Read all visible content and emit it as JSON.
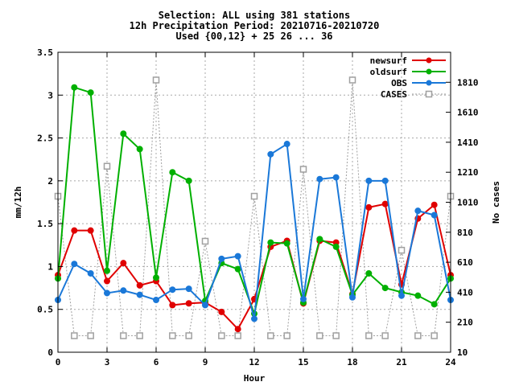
{
  "chart_data": {
    "type": "line",
    "title_lines": [
      "Selection: ALL using   381 stations",
      "12h Precipitation   Period: 20210716-20210720",
      "Used {00,12} + 25 26 ... 36"
    ],
    "xlabel": "Hour",
    "ylabel": "mm/12h",
    "y2label": "No cases",
    "xlim": [
      0,
      24
    ],
    "ylim": [
      0,
      3.5
    ],
    "y2lim": [
      10,
      2010
    ],
    "x_ticks": [
      0,
      3,
      6,
      9,
      12,
      15,
      18,
      21,
      24
    ],
    "y_ticks": [
      "0",
      "0.5",
      "1",
      "1.5",
      "2",
      "2.5",
      "3",
      "3.5"
    ],
    "y2_ticks": [
      10,
      210,
      410,
      610,
      810,
      1010,
      1210,
      1410,
      1610,
      1810
    ],
    "grid": true,
    "legend_position": "top-right",
    "series": [
      {
        "name": "newsurf",
        "color": "#e00000",
        "marker": "filled-circle",
        "axis": "left",
        "x": [
          0,
          1,
          2,
          3,
          4,
          5,
          6,
          7,
          8,
          9,
          10,
          11,
          12,
          13,
          14,
          15,
          16,
          17,
          18,
          19,
          20,
          21,
          22,
          23,
          24
        ],
        "y": [
          0.9,
          1.42,
          1.42,
          0.83,
          1.04,
          0.78,
          0.83,
          0.55,
          0.57,
          0.58,
          0.47,
          0.27,
          0.62,
          1.23,
          1.3,
          0.57,
          1.3,
          1.28,
          0.68,
          1.69,
          1.73,
          0.79,
          1.56,
          1.72,
          0.9
        ]
      },
      {
        "name": "oldsurf",
        "color": "#00b000",
        "marker": "filled-circle",
        "axis": "left",
        "x": [
          0,
          1,
          2,
          3,
          4,
          5,
          6,
          7,
          8,
          9,
          10,
          11,
          12,
          13,
          14,
          15,
          16,
          17,
          18,
          19,
          20,
          21,
          22,
          23,
          24
        ],
        "y": [
          0.86,
          3.09,
          3.03,
          0.95,
          2.55,
          2.37,
          0.87,
          2.1,
          2.0,
          0.6,
          1.04,
          0.97,
          0.45,
          1.28,
          1.27,
          0.58,
          1.32,
          1.23,
          0.67,
          0.92,
          0.75,
          0.7,
          0.66,
          0.56,
          0.86
        ]
      },
      {
        "name": "OBS",
        "color": "#1a78d8",
        "marker": "filled-circle",
        "axis": "left",
        "x": [
          0,
          1,
          2,
          3,
          4,
          5,
          6,
          7,
          8,
          9,
          10,
          11,
          12,
          13,
          14,
          15,
          16,
          17,
          18,
          19,
          20,
          21,
          22,
          23,
          24
        ],
        "y": [
          0.61,
          1.03,
          0.92,
          0.69,
          0.72,
          0.67,
          0.61,
          0.73,
          0.74,
          0.55,
          1.09,
          1.12,
          0.39,
          2.31,
          2.43,
          0.62,
          2.02,
          2.04,
          0.64,
          2.0,
          2.0,
          0.66,
          1.65,
          1.6,
          0.61
        ]
      },
      {
        "name": "CASES",
        "color": "#a0a0a0",
        "marker": "open-square",
        "axis": "right",
        "x": [
          0,
          1,
          2,
          3,
          4,
          5,
          6,
          7,
          8,
          9,
          10,
          11,
          12,
          13,
          14,
          15,
          16,
          17,
          18,
          19,
          20,
          21,
          22,
          23,
          24
        ],
        "y": [
          1050,
          120,
          120,
          1250,
          120,
          120,
          1825,
          120,
          120,
          750,
          120,
          120,
          1050,
          120,
          120,
          1230,
          120,
          120,
          1825,
          120,
          120,
          690,
          120,
          120,
          1050
        ]
      }
    ]
  }
}
